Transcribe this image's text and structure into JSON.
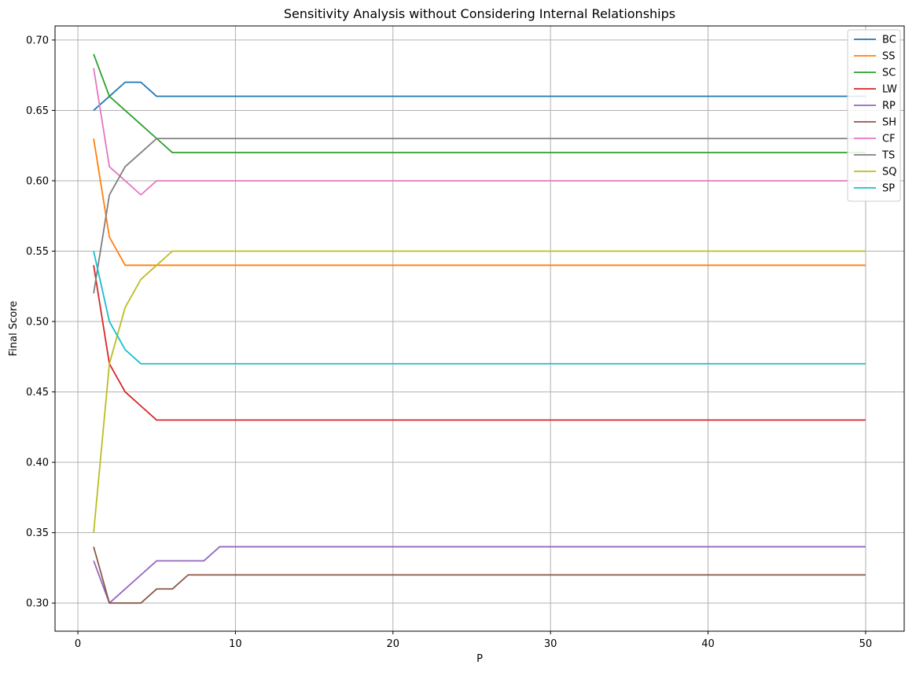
{
  "chart_data": {
    "type": "line",
    "title": "Sensitivity Analysis without Considering Internal Relationships",
    "xlabel": "P",
    "ylabel": "Final Score",
    "xlim": [
      -1.45,
      52.45
    ],
    "ylim": [
      0.28,
      0.71
    ],
    "xticks": [
      0,
      10,
      20,
      30,
      40,
      50
    ],
    "yticks": [
      0.3,
      0.35,
      0.4,
      0.45,
      0.5,
      0.55,
      0.6,
      0.65,
      0.7
    ],
    "ytick_labels": [
      "0.30",
      "0.35",
      "0.40",
      "0.45",
      "0.50",
      "0.55",
      "0.60",
      "0.65",
      "0.70"
    ],
    "xtick_labels": [
      "0",
      "10",
      "20",
      "30",
      "40",
      "50"
    ],
    "grid": true,
    "legend_position": "top-right",
    "x_end": 50,
    "series": [
      {
        "name": "BC",
        "color": "#1f77b4",
        "points": [
          [
            1,
            0.65
          ],
          [
            2,
            0.66
          ],
          [
            3,
            0.67
          ],
          [
            4,
            0.67
          ],
          [
            5,
            0.66
          ]
        ]
      },
      {
        "name": "SS",
        "color": "#ff7f0e",
        "points": [
          [
            1,
            0.63
          ],
          [
            2,
            0.56
          ],
          [
            3,
            0.54
          ]
        ]
      },
      {
        "name": "SC",
        "color": "#2ca02c",
        "points": [
          [
            1,
            0.69
          ],
          [
            2,
            0.66
          ],
          [
            3,
            0.65
          ],
          [
            4,
            0.64
          ],
          [
            5,
            0.63
          ],
          [
            6,
            0.62
          ]
        ]
      },
      {
        "name": "LW",
        "color": "#d62728",
        "points": [
          [
            1,
            0.54
          ],
          [
            2,
            0.47
          ],
          [
            3,
            0.45
          ],
          [
            4,
            0.44
          ],
          [
            5,
            0.43
          ]
        ]
      },
      {
        "name": "RP",
        "color": "#9467bd",
        "points": [
          [
            1,
            0.33
          ],
          [
            2,
            0.3
          ],
          [
            3,
            0.31
          ],
          [
            4,
            0.32
          ],
          [
            5,
            0.33
          ],
          [
            6,
            0.33
          ],
          [
            7,
            0.33
          ],
          [
            8,
            0.33
          ],
          [
            9,
            0.34
          ]
        ]
      },
      {
        "name": "SH",
        "color": "#8c564b",
        "points": [
          [
            1,
            0.34
          ],
          [
            2,
            0.3
          ],
          [
            3,
            0.3
          ],
          [
            4,
            0.3
          ],
          [
            5,
            0.31
          ],
          [
            6,
            0.31
          ],
          [
            7,
            0.32
          ]
        ]
      },
      {
        "name": "CF",
        "color": "#e377c2",
        "points": [
          [
            1,
            0.68
          ],
          [
            2,
            0.61
          ],
          [
            3,
            0.6
          ],
          [
            4,
            0.59
          ],
          [
            5,
            0.6
          ]
        ]
      },
      {
        "name": "TS",
        "color": "#7f7f7f",
        "points": [
          [
            1,
            0.52
          ],
          [
            2,
            0.59
          ],
          [
            3,
            0.61
          ],
          [
            4,
            0.62
          ],
          [
            5,
            0.63
          ]
        ]
      },
      {
        "name": "SQ",
        "color": "#bcbd22",
        "points": [
          [
            1,
            0.35
          ],
          [
            2,
            0.47
          ],
          [
            3,
            0.51
          ],
          [
            4,
            0.53
          ],
          [
            5,
            0.54
          ],
          [
            6,
            0.55
          ]
        ]
      },
      {
        "name": "SP",
        "color": "#17becf",
        "points": [
          [
            1,
            0.55
          ],
          [
            2,
            0.5
          ],
          [
            3,
            0.48
          ],
          [
            4,
            0.47
          ]
        ]
      }
    ]
  }
}
